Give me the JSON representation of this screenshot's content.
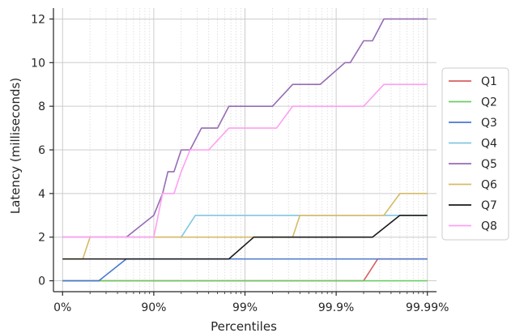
{
  "chart_data": {
    "type": "line",
    "xlabel": "Percentiles",
    "ylabel": "Latency (milliseconds)",
    "x_scale": "percentile (log of 1/(1-p))",
    "xlim": [
      "0%",
      "99.99%"
    ],
    "ylim": [
      -0.5,
      12.5
    ],
    "x_ticks": [
      {
        "p": 0,
        "label": "0%"
      },
      {
        "p": 90,
        "label": "90%"
      },
      {
        "p": 99,
        "label": "99%"
      },
      {
        "p": 99.9,
        "label": "99.9%"
      },
      {
        "p": 99.99,
        "label": "99.99%"
      }
    ],
    "y_ticks": [
      0,
      2,
      4,
      6,
      8,
      10,
      12
    ],
    "grid": true,
    "legend_position": "right",
    "series": [
      {
        "name": "Q1",
        "color": "#d65f5f",
        "points": [
          [
            0,
            0
          ],
          [
            99.95,
            0
          ],
          [
            99.965,
            1
          ],
          [
            99.99,
            1
          ]
        ]
      },
      {
        "name": "Q2",
        "color": "#6acc64",
        "points": [
          [
            0,
            0
          ],
          [
            99.99,
            0
          ]
        ]
      },
      {
        "name": "Q3",
        "color": "#4878d0",
        "points": [
          [
            0,
            0
          ],
          [
            60,
            0
          ],
          [
            80,
            1
          ],
          [
            99.99,
            1
          ]
        ]
      },
      {
        "name": "Q4",
        "color": "#82c6e2",
        "points": [
          [
            0,
            2
          ],
          [
            95,
            2
          ],
          [
            96.5,
            3
          ],
          [
            99.92,
            3
          ],
          [
            99.99,
            3
          ]
        ]
      },
      {
        "name": "Q5",
        "color": "#956cb4",
        "points": [
          [
            0,
            2
          ],
          [
            80,
            2
          ],
          [
            90,
            3
          ],
          [
            92,
            4
          ],
          [
            93,
            5
          ],
          [
            94,
            5
          ],
          [
            95,
            6
          ],
          [
            96,
            6
          ],
          [
            97,
            7
          ],
          [
            98,
            7
          ],
          [
            98.5,
            8
          ],
          [
            99.5,
            8
          ],
          [
            99.7,
            9
          ],
          [
            99.85,
            9
          ],
          [
            99.92,
            10
          ],
          [
            99.93,
            10
          ],
          [
            99.95,
            11
          ],
          [
            99.96,
            11
          ],
          [
            99.97,
            12
          ],
          [
            99.99,
            12
          ]
        ]
      },
      {
        "name": "Q6",
        "color": "#d5bb67",
        "points": [
          [
            0,
            1
          ],
          [
            40,
            1
          ],
          [
            50,
            2
          ],
          [
            99.7,
            2
          ],
          [
            99.75,
            3
          ],
          [
            99.97,
            3
          ],
          [
            99.98,
            4
          ],
          [
            99.99,
            4
          ]
        ]
      },
      {
        "name": "Q7",
        "color": "#1a1a1a",
        "points": [
          [
            0,
            1
          ],
          [
            98.5,
            1
          ],
          [
            99.2,
            2
          ],
          [
            99.96,
            2
          ],
          [
            99.98,
            3
          ],
          [
            99.99,
            3
          ]
        ]
      },
      {
        "name": "Q8",
        "color": "#ff9ff3",
        "points": [
          [
            0,
            2
          ],
          [
            90,
            2
          ],
          [
            92,
            4
          ],
          [
            94,
            4
          ],
          [
            95,
            5
          ],
          [
            96,
            6
          ],
          [
            97.5,
            6
          ],
          [
            98.5,
            7
          ],
          [
            99.55,
            7
          ],
          [
            99.7,
            8
          ],
          [
            99.95,
            8
          ],
          [
            99.97,
            9
          ],
          [
            99.99,
            9
          ]
        ]
      }
    ]
  }
}
